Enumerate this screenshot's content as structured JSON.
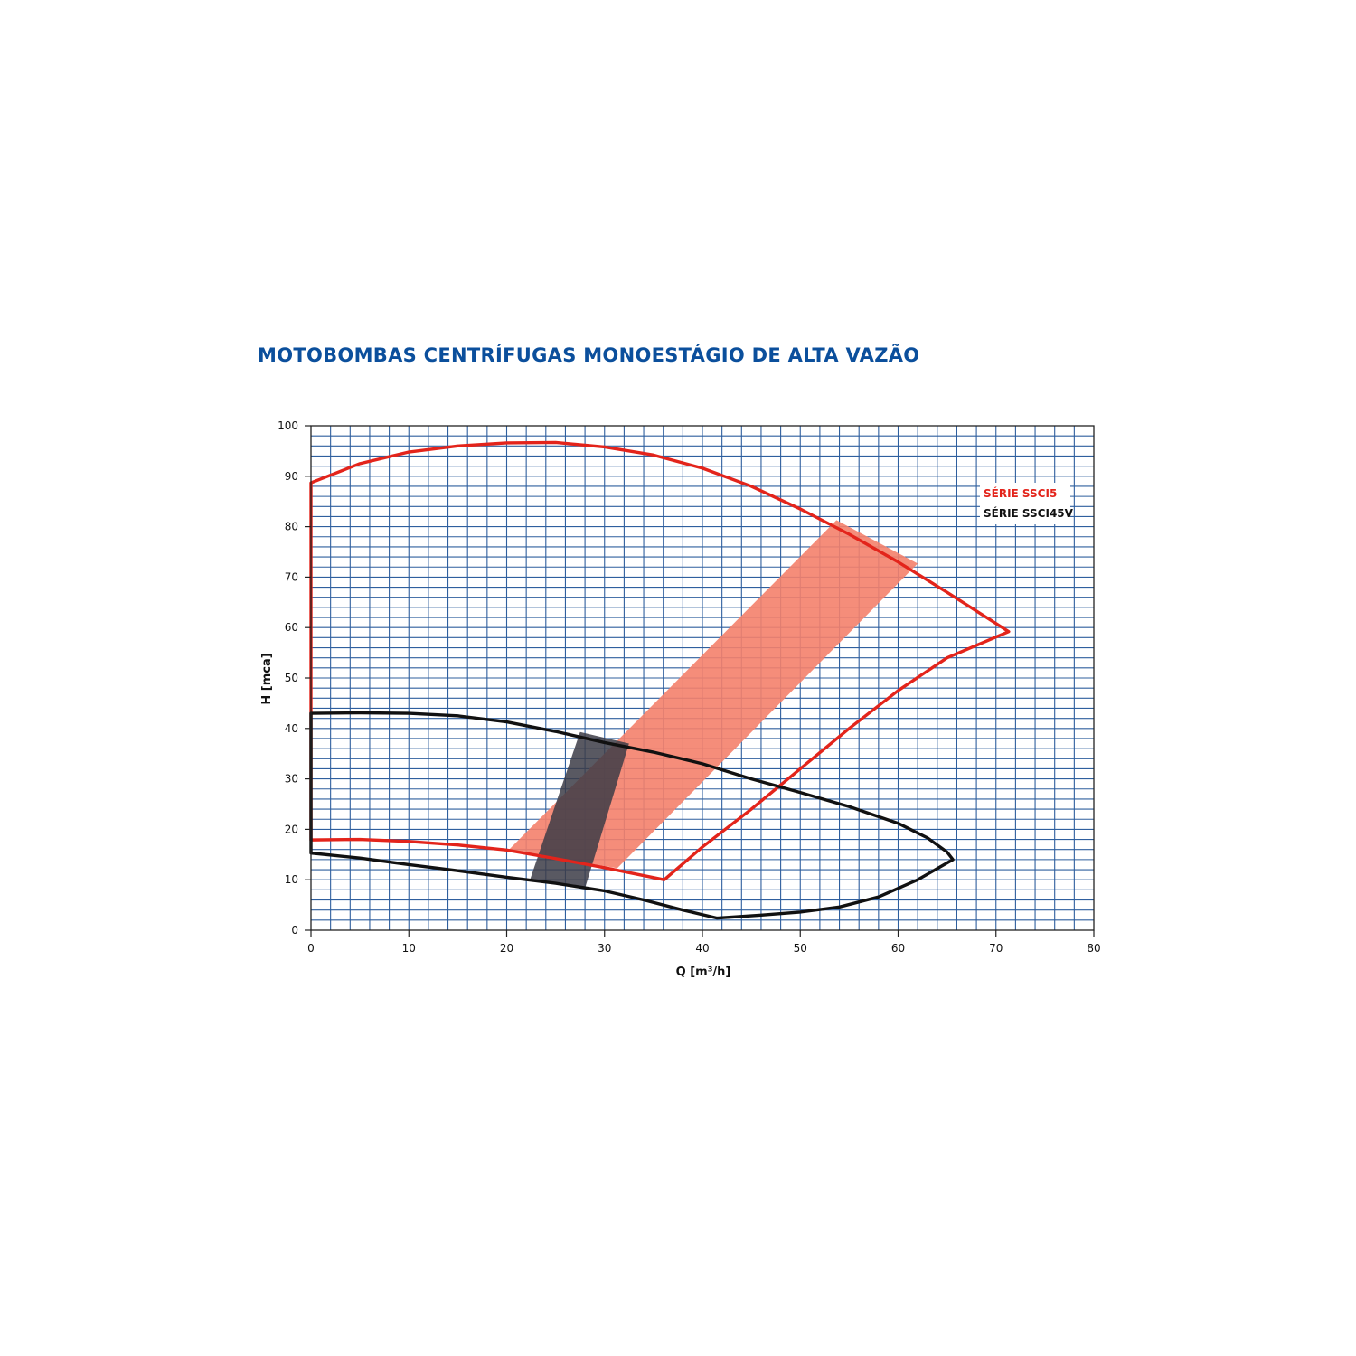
{
  "page": {
    "title": "MOTOBOMBAS CENTRÍFUGAS MONOESTÁGIO DE ALTA VAZÃO"
  },
  "colors": {
    "title": "#0b4f9c",
    "grid": "#2f5f9e",
    "ssci5": "#e3241b",
    "ssci5_band": "#f4816c",
    "ssci45v": "#111111",
    "ssci45v_band": "#3c3c46"
  },
  "chart_data": {
    "type": "line",
    "xlabel": "Q [m³/h]",
    "ylabel": "H [mca]",
    "xlim": [
      0,
      80
    ],
    "ylim": [
      0,
      100
    ],
    "xticks": [
      0,
      10,
      20,
      30,
      40,
      50,
      60,
      70,
      80
    ],
    "yticks": [
      0,
      10,
      20,
      30,
      40,
      50,
      60,
      70,
      80,
      90,
      100
    ],
    "grid": true,
    "legend_position": "top-right",
    "series": [
      {
        "name": "SÉRIE SSCI5",
        "color": "#e3241b",
        "fill": "none",
        "closed": true,
        "points": [
          [
            0,
            88.7
          ],
          [
            5,
            92.5
          ],
          [
            10,
            94.8
          ],
          [
            15,
            96.0
          ],
          [
            20,
            96.6
          ],
          [
            25,
            96.7
          ],
          [
            30,
            95.8
          ],
          [
            35,
            94.2
          ],
          [
            40,
            91.6
          ],
          [
            45,
            88.0
          ],
          [
            50,
            83.5
          ],
          [
            55,
            78.5
          ],
          [
            60,
            73.0
          ],
          [
            65,
            67.0
          ],
          [
            71.3,
            59.2
          ],
          [
            65,
            54.0
          ],
          [
            60,
            47.5
          ],
          [
            55,
            40.0
          ],
          [
            50,
            32.0
          ],
          [
            45,
            24.0
          ],
          [
            40,
            16.5
          ],
          [
            36.1,
            10.0
          ],
          [
            30,
            12.4
          ],
          [
            25,
            14.2
          ],
          [
            20,
            15.9
          ],
          [
            15,
            16.9
          ],
          [
            10,
            17.6
          ],
          [
            5,
            18.0
          ],
          [
            0,
            17.9
          ]
        ]
      },
      {
        "name": "SÉRIE SSCI45V",
        "color": "#111111",
        "fill": "none",
        "closed": true,
        "points": [
          [
            0,
            43.0
          ],
          [
            5,
            43.1
          ],
          [
            10,
            43.0
          ],
          [
            15,
            42.5
          ],
          [
            20,
            41.3
          ],
          [
            25,
            39.4
          ],
          [
            30,
            37.2
          ],
          [
            35,
            35.3
          ],
          [
            40,
            33.0
          ],
          [
            45,
            30.0
          ],
          [
            50,
            27.3
          ],
          [
            55,
            24.5
          ],
          [
            60,
            21.2
          ],
          [
            63,
            18.3
          ],
          [
            65,
            15.5
          ],
          [
            65.6,
            14.0
          ],
          [
            62,
            10.0
          ],
          [
            58,
            6.6
          ],
          [
            54,
            4.6
          ],
          [
            50,
            3.6
          ],
          [
            46,
            3.0
          ],
          [
            41.5,
            2.4
          ],
          [
            38,
            4.0
          ],
          [
            34,
            6.0
          ],
          [
            30,
            7.8
          ],
          [
            25,
            9.3
          ],
          [
            20,
            10.5
          ],
          [
            15,
            11.8
          ],
          [
            10,
            13.0
          ],
          [
            5,
            14.3
          ],
          [
            0,
            15.3
          ]
        ]
      }
    ],
    "bands": [
      {
        "series": "SÉRIE SSCI5",
        "color": "#f4816c",
        "points": [
          [
            20.2,
            15.9
          ],
          [
            53.7,
            81.3
          ],
          [
            62.0,
            72.7
          ],
          [
            31.3,
            12.3
          ]
        ]
      },
      {
        "series": "SÉRIE SSCI45V",
        "color": "#3c3c46",
        "points": [
          [
            22.4,
            10.1
          ],
          [
            27.5,
            39.3
          ],
          [
            32.5,
            37.0
          ],
          [
            28.0,
            8.3
          ]
        ]
      }
    ]
  }
}
